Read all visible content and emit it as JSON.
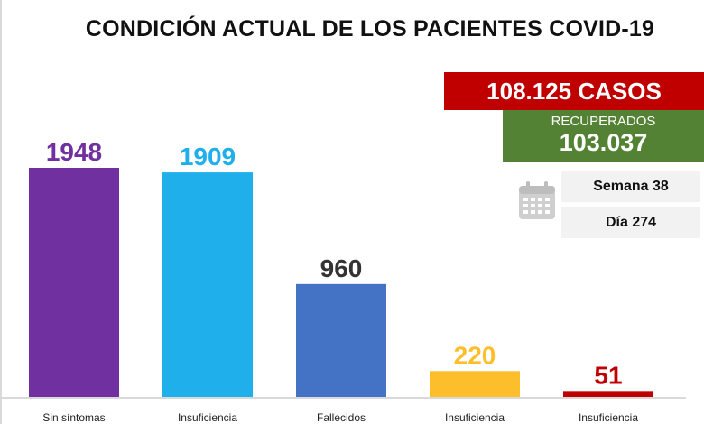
{
  "chart_data": {
    "type": "bar",
    "title": "CONDICIÓN ACTUAL DE LOS PACIENTES COVID-19",
    "categories": [
      "Sin síntomas",
      "Insuficiencia",
      "Fallecidos",
      "Insuficiencia",
      "Insuficiencia"
    ],
    "values": [
      1948,
      1909,
      960,
      220,
      51
    ],
    "value_labels": [
      "1948",
      "1909",
      "960",
      "220",
      "51"
    ],
    "bar_colors": [
      "#7030a0",
      "#1fb0ec",
      "#4472c4",
      "#fcbf2b",
      "#c00000"
    ],
    "label_colors": [
      "#7030a0",
      "#1fb0ec",
      "#333333",
      "#fcbf2b",
      "#c00000"
    ],
    "ylim": [
      0,
      1948
    ],
    "xlabel": "",
    "ylabel": ""
  },
  "summary": {
    "cases_text": "108.125 CASOS",
    "recovered_label": "RECUPERADOS",
    "recovered_value": "103.037",
    "week": "Semana 38",
    "day": "Día 274"
  },
  "colors": {
    "cases_bg": "#c00000",
    "recovered_bg": "#548235"
  },
  "icons": {
    "calendar": "calendar-icon"
  }
}
